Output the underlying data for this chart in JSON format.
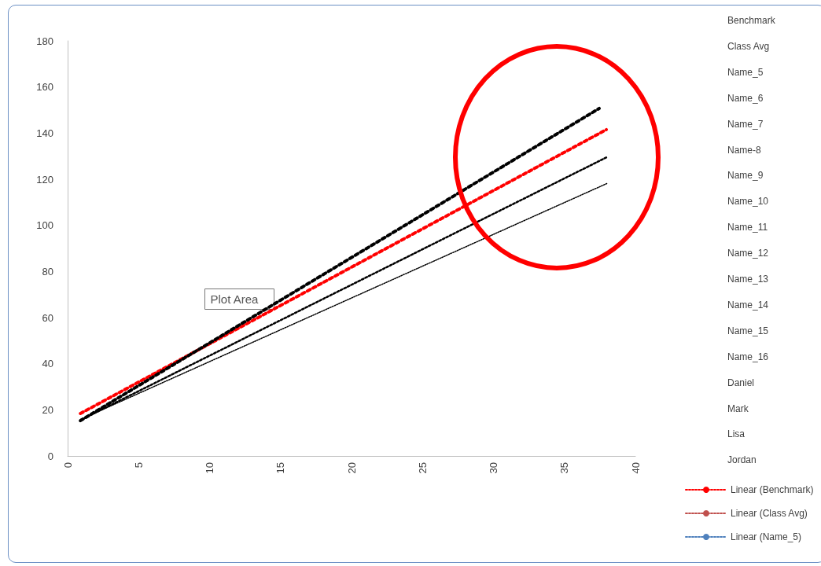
{
  "chart_data": {
    "type": "line",
    "xlim": [
      0,
      40
    ],
    "xticks": [
      0,
      5,
      10,
      15,
      20,
      25,
      30,
      35,
      40
    ],
    "ylim": [
      0,
      180
    ],
    "yticks": [
      0,
      20,
      40,
      60,
      80,
      100,
      120,
      140,
      160,
      180
    ],
    "grid": false,
    "marker": "none",
    "line_style": "dotted",
    "legend": "bottom right",
    "series": [
      {
        "name": "Linear (Benchmark)",
        "color": "#ff0000",
        "x": [
          0.9,
          37.95
        ],
        "values": [
          18.4,
          141.5
        ]
      },
      {
        "name": "Linear (Class Avg)",
        "color": "#c0504d"
      },
      {
        "name": "Linear (Name_5)",
        "color": "#4f81bd"
      },
      {
        "color": "#000000",
        "x": [
          0.9,
          37.45
        ],
        "values": [
          15.3,
          150.7
        ]
      },
      {
        "color": "#000000",
        "x": [
          0.9,
          38
        ],
        "values": [
          15.5,
          129.6
        ]
      },
      {
        "color": "#000000",
        "x": [
          0.9,
          38.05
        ],
        "values": [
          15.8,
          118.3
        ]
      }
    ],
    "annotations": [
      "Benchmark",
      "Class Avg",
      "Name_5",
      "Name_6",
      "Name_7",
      "Name-8",
      "Name_9",
      "Name_10",
      "Name_11",
      "Name_12",
      "Name_13",
      "Name_14",
      "Name_15",
      "Name_16",
      "Daniel",
      "Mark",
      "Lisa",
      "Jordan",
      "Plot Area"
    ]
  }
}
